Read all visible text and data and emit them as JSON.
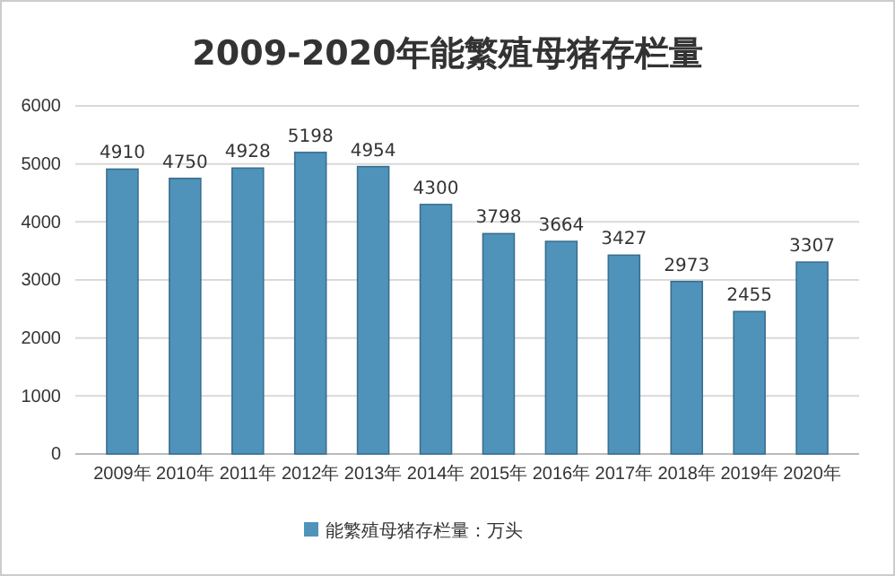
{
  "chart_data": {
    "type": "bar",
    "title": "2009-2020年能繁殖母猪存栏量",
    "categories": [
      "2009年",
      "2010年",
      "2011年",
      "2012年",
      "2013年",
      "2014年",
      "2015年",
      "2016年",
      "2017年",
      "2018年",
      "2019年",
      "2020年"
    ],
    "series": [
      {
        "name": "能繁殖母猪存栏量：万头",
        "color": "#4f93bb",
        "values": [
          4910,
          4750,
          4928,
          5198,
          4954,
          4300,
          3798,
          3664,
          3427,
          2973,
          2455,
          3307
        ]
      }
    ],
    "ylim": [
      0,
      6000
    ],
    "yticks": [
      0,
      1000,
      2000,
      3000,
      4000,
      5000,
      6000
    ],
    "grid": "y",
    "legend": "bottom",
    "data_labels": true
  }
}
